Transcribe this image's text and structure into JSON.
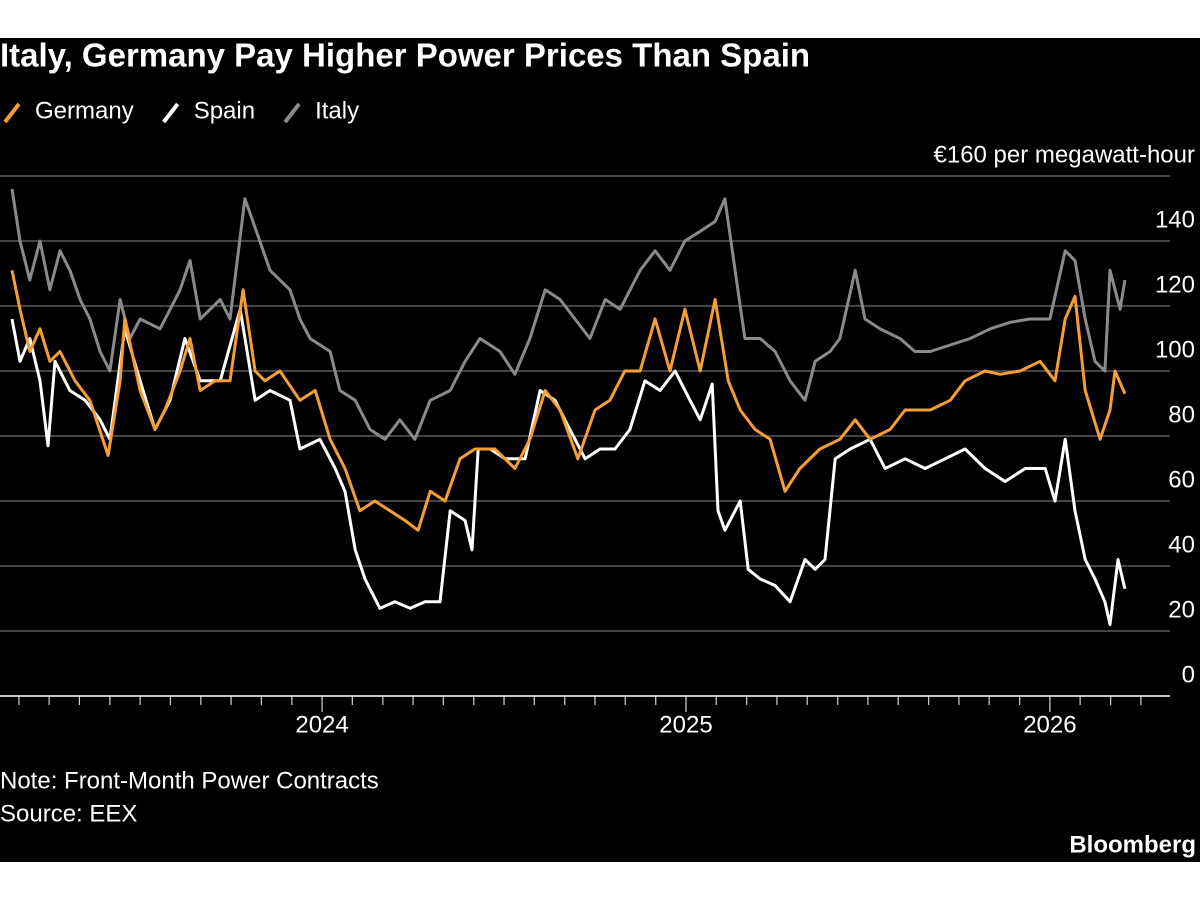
{
  "chart_data": {
    "type": "line",
    "title": "Italy, Germany Pay Higher Power Prices Than Spain",
    "note": "Note: Front-Month Power Contracts",
    "source": "Source: EEX",
    "brand": "Bloomberg",
    "xlim": [
      2023.115,
      2026.33
    ],
    "xticks": [
      2024,
      2025,
      2026
    ],
    "xminorticks": [
      2023.167,
      2023.25,
      2023.333,
      2023.417,
      2023.5,
      2023.583,
      2023.667,
      2023.75,
      2023.833,
      2023.917,
      2024.083,
      2024.167,
      2024.25,
      2024.333,
      2024.417,
      2024.5,
      2024.583,
      2024.667,
      2024.75,
      2024.833,
      2024.917,
      2025.083,
      2025.167,
      2025.25,
      2025.333,
      2025.417,
      2025.5,
      2025.583,
      2025.667,
      2025.75,
      2025.833,
      2025.917,
      2026.083,
      2026.167,
      2026.25
    ],
    "ylim": [
      0,
      160
    ],
    "yticks": [
      0,
      20,
      40,
      60,
      80,
      100,
      120,
      140,
      {
        "value": 160,
        "label": "€160 per megawatt-hour"
      }
    ],
    "grid": true,
    "legend": "top-left",
    "series": [
      {
        "name": "Germany",
        "color": "#f59d36",
        "x": [
          2023.148,
          2023.17,
          2023.197,
          2023.225,
          2023.252,
          2023.28,
          2023.321,
          2023.362,
          2023.412,
          2023.445,
          2023.458,
          2023.5,
          2023.541,
          2023.568,
          2023.61,
          2023.637,
          2023.665,
          2023.706,
          2023.747,
          2023.783,
          2023.816,
          2023.843,
          2023.884,
          2023.939,
          2023.981,
          2024.022,
          2024.063,
          2024.104,
          2024.145,
          2024.187,
          2024.228,
          2024.264,
          2024.297,
          2024.338,
          2024.379,
          2024.42,
          2024.475,
          2024.53,
          2024.571,
          2024.613,
          2024.654,
          2024.703,
          2024.75,
          2024.791,
          2024.832,
          2024.874,
          2024.915,
          2024.956,
          2024.997,
          2025.039,
          2025.08,
          2025.116,
          2025.149,
          2025.19,
          2025.231,
          2025.272,
          2025.313,
          2025.368,
          2025.423,
          2025.465,
          2025.506,
          2025.561,
          2025.602,
          2025.671,
          2025.726,
          2025.767,
          2025.822,
          2025.863,
          2025.918,
          2025.973,
          2026.014,
          2026.042,
          2026.069,
          2026.097,
          2026.138,
          2026.165,
          2026.179,
          2026.206
        ],
        "values": [
          131,
          119,
          106,
          113,
          103,
          106,
          97,
          91,
          74,
          97,
          116,
          94,
          82,
          88,
          100,
          110,
          94,
          97,
          97,
          125,
          100,
          97,
          100,
          91,
          94,
          79,
          70,
          57,
          60,
          57,
          54,
          51,
          63,
          60,
          73,
          76,
          76,
          70,
          79,
          94,
          88,
          73,
          88,
          91,
          100,
          100,
          116,
          100,
          119,
          100,
          122,
          97,
          88,
          82,
          79,
          63,
          70,
          76,
          79,
          85,
          79,
          82,
          88,
          88,
          91,
          97,
          100,
          99,
          100,
          103,
          97,
          116,
          123,
          94,
          79,
          88,
          100,
          93
        ]
      },
      {
        "name": "Spain",
        "color": "#ffffff",
        "x": [
          2023.148,
          2023.17,
          2023.197,
          2023.225,
          2023.247,
          2023.266,
          2023.307,
          2023.349,
          2023.39,
          2023.417,
          2023.458,
          2023.5,
          2023.541,
          2023.582,
          2023.623,
          2023.665,
          2023.72,
          2023.775,
          2023.816,
          2023.857,
          2023.912,
          2023.939,
          2023.994,
          2024.036,
          2024.063,
          2024.091,
          2024.118,
          2024.159,
          2024.2,
          2024.242,
          2024.283,
          2024.324,
          2024.352,
          2024.393,
          2024.412,
          2024.429,
          2024.462,
          2024.503,
          2024.558,
          2024.599,
          2024.64,
          2024.681,
          2024.723,
          2024.764,
          2024.805,
          2024.846,
          2024.887,
          2024.929,
          2024.97,
          2025.011,
          2025.039,
          2025.072,
          2025.088,
          2025.107,
          2025.149,
          2025.171,
          2025.204,
          2025.245,
          2025.286,
          2025.327,
          2025.355,
          2025.382,
          2025.41,
          2025.451,
          2025.506,
          2025.547,
          2025.602,
          2025.657,
          2025.712,
          2025.767,
          2025.822,
          2025.877,
          2025.932,
          2025.987,
          2026.014,
          2026.042,
          2026.069,
          2026.097,
          2026.124,
          2026.151,
          2026.165,
          2026.187,
          2026.206
        ],
        "values": [
          116,
          103,
          110,
          97,
          77,
          103,
          94,
          91,
          85,
          79,
          113,
          97,
          82,
          91,
          110,
          97,
          97,
          119,
          91,
          94,
          91,
          76,
          79,
          70,
          63,
          45,
          36,
          27,
          29,
          27,
          29,
          29,
          57,
          54,
          45,
          76,
          76,
          73,
          73,
          94,
          91,
          82,
          73,
          76,
          76,
          82,
          97,
          94,
          100,
          91,
          85,
          96,
          57,
          51,
          60,
          39,
          36,
          34,
          29,
          42,
          39,
          42,
          73,
          76,
          79,
          70,
          73,
          70,
          73,
          76,
          70,
          66,
          70,
          70,
          60,
          79,
          57,
          42,
          36,
          29,
          22,
          42,
          33
        ]
      },
      {
        "name": "Italy",
        "color": "#8a8a8a",
        "x": [
          2023.148,
          2023.17,
          2023.197,
          2023.225,
          2023.252,
          2023.28,
          2023.307,
          2023.335,
          2023.362,
          2023.39,
          2023.417,
          2023.445,
          2023.472,
          2023.5,
          2023.555,
          2023.61,
          2023.637,
          2023.665,
          2023.72,
          2023.747,
          2023.788,
          2023.829,
          2023.857,
          2023.912,
          2023.939,
          2023.967,
          2024.022,
          2024.049,
          2024.091,
          2024.132,
          2024.173,
          2024.214,
          2024.255,
          2024.297,
          2024.352,
          2024.393,
          2024.434,
          2024.489,
          2024.53,
          2024.571,
          2024.613,
          2024.654,
          2024.695,
          2024.736,
          2024.778,
          2024.819,
          2024.874,
          2024.915,
          2024.956,
          2024.997,
          2025.039,
          2025.08,
          2025.107,
          2025.135,
          2025.162,
          2025.204,
          2025.245,
          2025.286,
          2025.327,
          2025.355,
          2025.396,
          2025.423,
          2025.465,
          2025.492,
          2025.533,
          2025.588,
          2025.629,
          2025.671,
          2025.726,
          2025.781,
          2025.836,
          2025.891,
          2025.945,
          2026.0,
          2026.042,
          2026.069,
          2026.097,
          2026.124,
          2026.151,
          2026.165,
          2026.193,
          2026.206
        ],
        "values": [
          156,
          140,
          128,
          140,
          125,
          137,
          131,
          122,
          116,
          106,
          100,
          122,
          110,
          116,
          113,
          125,
          134,
          116,
          122,
          116,
          153,
          140,
          131,
          125,
          116,
          110,
          106,
          94,
          91,
          82,
          79,
          85,
          79,
          91,
          94,
          103,
          110,
          106,
          99,
          110,
          125,
          122,
          116,
          110,
          122,
          119,
          131,
          137,
          131,
          140,
          143,
          146,
          153,
          131,
          110,
          110,
          106,
          97,
          91,
          103,
          106,
          110,
          131,
          116,
          113,
          110,
          106,
          106,
          108,
          110,
          113,
          115,
          116,
          116,
          137,
          134,
          116,
          103,
          100,
          131,
          119,
          128
        ]
      }
    ]
  }
}
